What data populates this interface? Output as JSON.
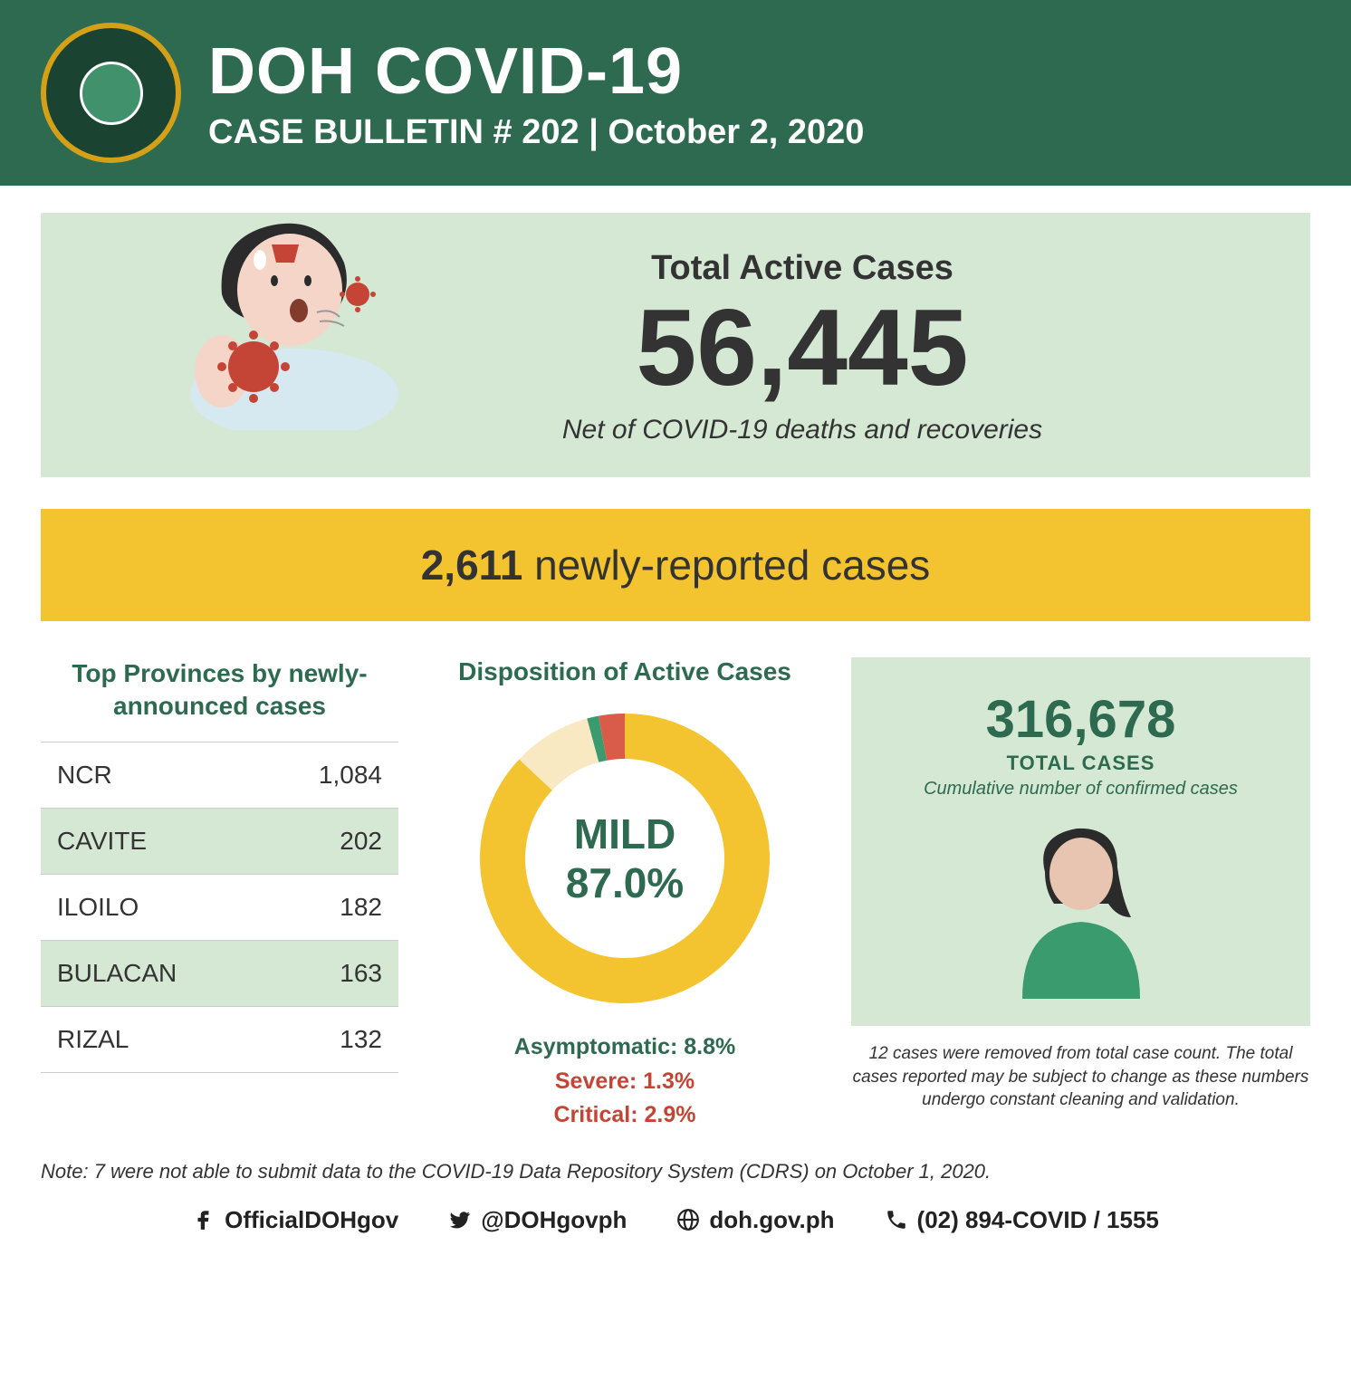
{
  "header": {
    "title": "DOH COVID-19",
    "subtitle": "CASE BULLETIN # 202 | October 2, 2020",
    "bg_color": "#2d6a4f"
  },
  "active": {
    "label": "Total Active Cases",
    "value": "56,445",
    "subtitle": "Net of COVID-19 deaths and recoveries",
    "box_bg": "#d4e8d4"
  },
  "new_cases": {
    "count": "2,611",
    "label": " newly-reported cases",
    "box_bg": "#f4c430"
  },
  "provinces": {
    "title": "Top Provinces by newly-announced cases",
    "rows": [
      {
        "name": "NCR",
        "value": "1,084"
      },
      {
        "name": "CAVITE",
        "value": "202"
      },
      {
        "name": "ILOILO",
        "value": "182"
      },
      {
        "name": "BULACAN",
        "value": "163"
      },
      {
        "name": "RIZAL",
        "value": "132"
      }
    ],
    "alt_bg": "#d4e8d4"
  },
  "disposition": {
    "title": "Disposition of Active Cases",
    "center_label": "MILD",
    "center_value": "87.0%",
    "segments": [
      {
        "label": "Mild",
        "value": 87.0,
        "color": "#f4c430"
      },
      {
        "label": "Asymptomatic",
        "value": 8.8,
        "color": "#f9e9c3"
      },
      {
        "label": "Severe",
        "value": 1.3,
        "color": "#3a9c6e"
      },
      {
        "label": "Critical",
        "value": 2.9,
        "color": "#d95c4a"
      }
    ],
    "list": [
      {
        "text": "Asymptomatic: 8.8%",
        "cls": "disp-a"
      },
      {
        "text": "Severe: 1.3%",
        "cls": "disp-s"
      },
      {
        "text": "Critical: 2.9%",
        "cls": "disp-c"
      }
    ],
    "donut_thickness": 50
  },
  "total": {
    "value": "316,678",
    "label": "TOTAL CASES",
    "subtitle": "Cumulative number of confirmed cases",
    "note": "12 cases were removed from total case count. The total cases reported may be subject to change as these numbers undergo constant cleaning and validation.",
    "box_bg": "#d4e8d4",
    "text_color": "#2d6a4f"
  },
  "bottom_note": "Note: 7 were not able to submit data to the COVID-19 Data Repository System (CDRS) on October 1, 2020.",
  "footer": {
    "fb": "OfficialDOHgov",
    "tw": "@DOHgovph",
    "web": "doh.gov.ph",
    "phone": "(02) 894-COVID  /  1555"
  },
  "illustration": {
    "skin": "#f5d5c8",
    "hair": "#2b2b2b",
    "shirt": "#d6e8f0",
    "virus": "#c44536",
    "sweat": "#ffffff"
  },
  "silhouette": {
    "hair": "#2b2b2b",
    "skin": "#e8c5b0",
    "shirt": "#3a9c6e"
  }
}
